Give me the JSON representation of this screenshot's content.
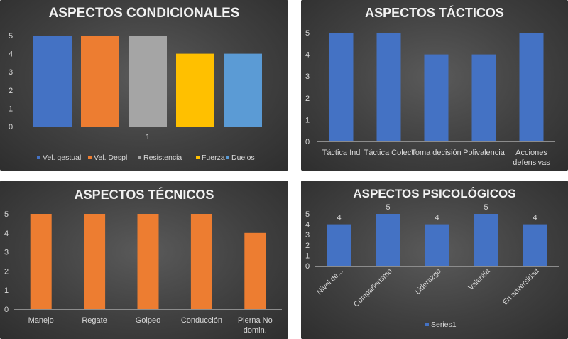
{
  "colors": {
    "blue": "#4472c4",
    "orange": "#ed7d31",
    "gray": "#a5a5a5",
    "yellow": "#ffc000",
    "lightblue": "#5b9bd5"
  },
  "chart_data": [
    {
      "id": "condicionales",
      "type": "bar",
      "title": "ASPECTOS CONDICIONALES",
      "categories": [
        "1"
      ],
      "series": [
        {
          "name": "Vel. gestual",
          "values": [
            5
          ],
          "color": "#4472c4"
        },
        {
          "name": "Vel. Despl",
          "values": [
            5
          ],
          "color": "#ed7d31"
        },
        {
          "name": "Resistencia",
          "values": [
            5
          ],
          "color": "#a5a5a5"
        },
        {
          "name": "Fuerza",
          "values": [
            4
          ],
          "color": "#ffc000"
        },
        {
          "name": "Duelos",
          "values": [
            4
          ],
          "color": "#5b9bd5"
        }
      ],
      "yticks": [
        "0",
        "1",
        "2",
        "3",
        "4",
        "5"
      ],
      "ylim": [
        0,
        5
      ],
      "legend": "bottom",
      "grid": false
    },
    {
      "id": "tacticos",
      "type": "bar",
      "title": "ASPECTOS TÁCTICOS",
      "categories": [
        "Táctica Ind",
        "Táctica Colect",
        "Toma decisión",
        "Polivalencia",
        "Acciones defensivas"
      ],
      "series": [
        {
          "values": [
            5,
            5,
            4,
            4,
            5
          ],
          "color": "#4472c4"
        }
      ],
      "yticks": [
        "0",
        "1",
        "2",
        "3",
        "4",
        "5"
      ],
      "ylim": [
        0,
        5
      ],
      "grid": false
    },
    {
      "id": "tecnicos",
      "type": "bar",
      "title": "ASPECTOS TÉCNICOS",
      "categories": [
        "Manejo",
        "Regate",
        "Golpeo",
        "Conducción",
        "Pierna No domin."
      ],
      "series": [
        {
          "values": [
            5,
            5,
            5,
            5,
            4
          ],
          "color": "#ed7d31"
        }
      ],
      "yticks": [
        "0",
        "1",
        "2",
        "3",
        "4",
        "5"
      ],
      "ylim": [
        0,
        5
      ],
      "grid": false
    },
    {
      "id": "psicologicos",
      "type": "bar",
      "title": "ASPECTOS PSICOLÓGICOS",
      "categories": [
        "Nivel de...",
        "Compañerismo",
        "Liderazgo",
        "Valentía",
        "En adversidad"
      ],
      "series": [
        {
          "name": "Series1",
          "values": [
            4,
            5,
            4,
            5,
            4
          ],
          "color": "#4472c4"
        }
      ],
      "data_labels": [
        "4",
        "5",
        "4",
        "5",
        "4"
      ],
      "yticks": [
        "0",
        "1",
        "2",
        "3",
        "4",
        "5"
      ],
      "ylim": [
        0,
        5
      ],
      "legend": "bottom",
      "grid": false
    }
  ]
}
